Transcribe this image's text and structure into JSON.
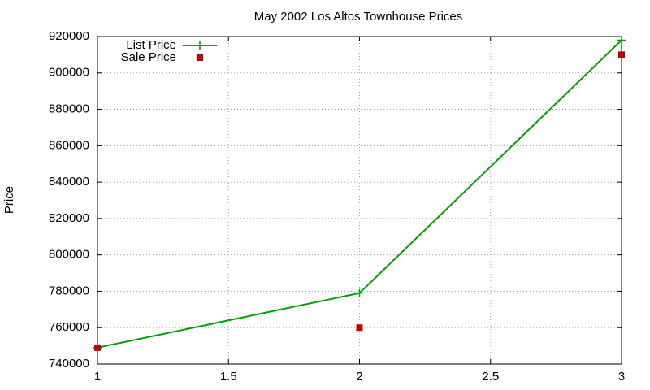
{
  "chart_data": {
    "type": "line",
    "title": "May 2002 Los Altos Townhouse Prices",
    "y_label": "Price",
    "x": [
      1,
      2,
      3
    ],
    "series": [
      {
        "name": "List Price",
        "color": "#00a000",
        "line": true,
        "marker": "plus",
        "values": [
          749000,
          779000,
          918000
        ]
      },
      {
        "name": "Sale Price",
        "color": "#c00000",
        "line": false,
        "marker": "square",
        "values": [
          749000,
          760000,
          910000
        ]
      }
    ],
    "xlim": [
      1,
      3
    ],
    "xticks": [
      1,
      1.5,
      2,
      2.5,
      3
    ],
    "ylim": [
      740000,
      920000
    ],
    "yticks": [
      740000,
      760000,
      780000,
      800000,
      820000,
      840000,
      860000,
      880000,
      900000,
      920000
    ],
    "grid": true,
    "legend": "top-left"
  }
}
